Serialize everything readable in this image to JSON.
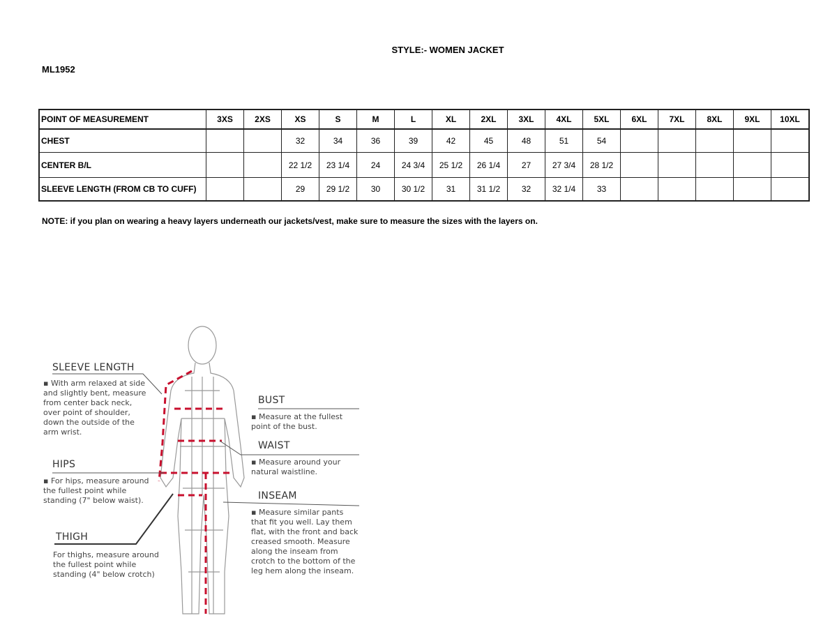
{
  "header": {
    "style_title": "STYLE:- WOMEN JACKET",
    "style_code": "ML1952"
  },
  "table": {
    "headers": [
      "POINT OF MEASUREMENT",
      "3XS",
      "2XS",
      "XS",
      "S",
      "M",
      "L",
      "XL",
      "2XL",
      "3XL",
      "4XL",
      "5XL",
      "6XL",
      "7XL",
      "8XL",
      "9XL",
      "10XL"
    ],
    "rows": [
      [
        "CHEST",
        "",
        "",
        "32",
        "34",
        "36",
        "39",
        "42",
        "45",
        "48",
        "51",
        "54",
        "",
        "",
        "",
        "",
        ""
      ],
      [
        "CENTER B/L",
        "",
        "",
        "22 1/2",
        "23 1/4",
        "24",
        "24 3/4",
        "25 1/2",
        "26 1/4",
        "27",
        "27 3/4",
        "28 1/2",
        "",
        "",
        "",
        "",
        ""
      ],
      [
        "SLEEVE LENGTH (FROM CB TO CUFF)",
        "",
        "",
        "29",
        "29 1/2",
        "30",
        "30 1/2",
        "31",
        "31  1/2",
        "32",
        "32 1/4",
        "33",
        "",
        "",
        "",
        "",
        ""
      ]
    ]
  },
  "note": "NOTE: if you plan on wearing a heavy layers underneath our jackets/vest, make sure to measure the sizes with the layers on.",
  "figure": {
    "sleeve": {
      "title": "SLEEVE LENGTH",
      "text": "▪ With arm relaxed at side and slightly bent, measure from center back neck, over point of shoulder, down the outside of the arm wrist."
    },
    "hips": {
      "title": "HIPS",
      "text": "▪ For hips, measure around the fullest point while standing (7\" below waist)."
    },
    "thigh": {
      "title": "THIGH",
      "text": "For thighs, measure around the fullest point while standing (4\" below crotch)"
    },
    "bust": {
      "title": "BUST",
      "text": "▪ Measure at the fullest point of the bust."
    },
    "waist": {
      "title": "WAIST",
      "text": "▪ Measure around your natural waistline."
    },
    "inseam": {
      "title": "INSEAM",
      "text": "▪ Measure similar pants that fit you well. Lay them flat, with the front and back creased smooth. Measure along the inseam from crotch to the bottom of the leg hem along the inseam."
    },
    "measure_line_color": "#c8102e"
  }
}
